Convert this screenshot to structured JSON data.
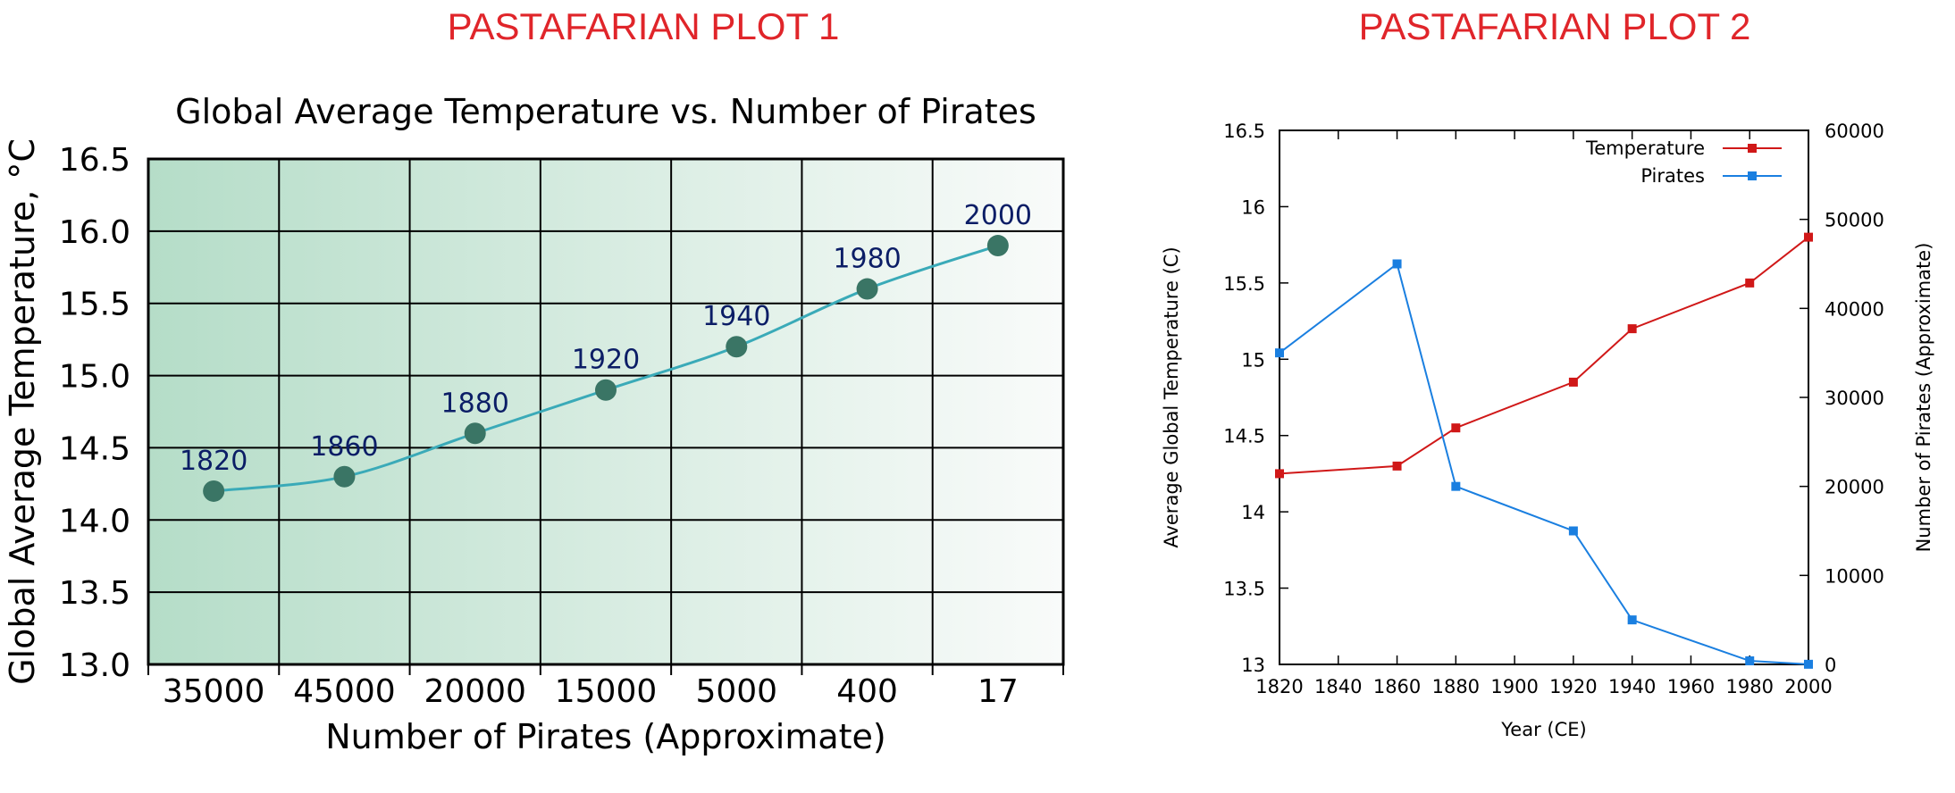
{
  "panels": {
    "left_heading": "PASTAFARIAN PLOT 1",
    "right_heading": "PASTAFARIAN PLOT 2"
  },
  "colors": {
    "heading": "#e0252a",
    "temperature_line": "#d01818",
    "pirates_line": "#1a7fe0",
    "curve": "#3aaab8",
    "marker": "#3a7565",
    "year_label": "#0b1d66",
    "bg_dark": "#b5ddc8",
    "bg_light": "#f9fbfa"
  },
  "chart_data": [
    {
      "type": "line",
      "title": "Global Average Temperature vs. Number of Pirates",
      "xlabel": "Number of Pirates (Approximate)",
      "ylabel": "Global Average Temperature, °C",
      "categories": [
        "35000",
        "45000",
        "20000",
        "15000",
        "5000",
        "400",
        "17"
      ],
      "values": [
        14.2,
        14.3,
        14.6,
        14.9,
        15.2,
        15.6,
        15.9
      ],
      "point_labels": [
        "1820",
        "1860",
        "1880",
        "1920",
        "1940",
        "1980",
        "2000"
      ],
      "ylim": [
        13.0,
        16.5
      ],
      "yticks": [
        "13.0",
        "13.5",
        "14.0",
        "14.5",
        "15.0",
        "15.5",
        "16.0",
        "16.5"
      ],
      "grid": true,
      "background": "horizontal green gradient"
    },
    {
      "type": "line",
      "title": "",
      "xlabel": "Year (CE)",
      "ylabel": "Average Global Temperature (C)",
      "y2label": "Number of Pirates (Approximate)",
      "x": [
        1820,
        1860,
        1880,
        1920,
        1940,
        1980,
        2000
      ],
      "xlim": [
        1820,
        2000
      ],
      "xticks": [
        "1820",
        "1840",
        "1860",
        "1880",
        "1900",
        "1920",
        "1940",
        "1960",
        "1980",
        "2000"
      ],
      "ylim": [
        13,
        16.5
      ],
      "yticks": [
        "13",
        "13.5",
        "14",
        "14.5",
        "15",
        "15.5",
        "16",
        "16.5"
      ],
      "y2lim": [
        0,
        60000
      ],
      "y2ticks": [
        "0",
        "10000",
        "20000",
        "30000",
        "40000",
        "50000",
        "60000"
      ],
      "legend": "top-right",
      "grid": false,
      "series": [
        {
          "name": "Temperature",
          "axis": "left",
          "values": [
            14.25,
            14.3,
            14.55,
            14.85,
            15.2,
            15.5,
            15.8
          ]
        },
        {
          "name": "Pirates",
          "axis": "right",
          "values": [
            35000,
            45000,
            20000,
            15000,
            5000,
            400,
            17
          ]
        }
      ]
    }
  ]
}
